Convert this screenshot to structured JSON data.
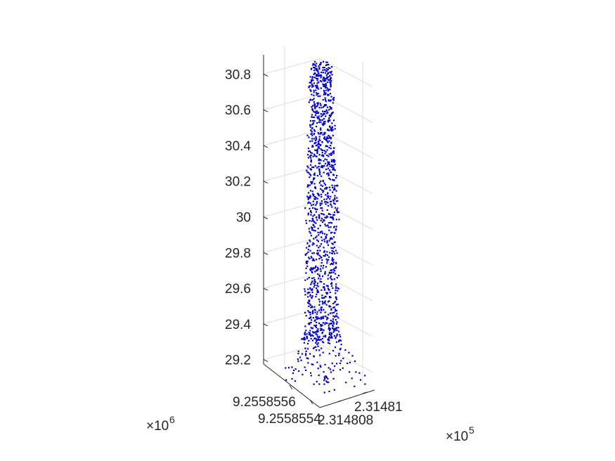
{
  "chart_data": {
    "type": "scatter",
    "view": "3d",
    "grid": true,
    "title": "",
    "xlabel": "",
    "ylabel": "",
    "zlabel": "",
    "marker": "point",
    "marker_color": "#0000cc",
    "x_axis": {
      "tick_labels": [
        "2.314808",
        "2.31481"
      ],
      "multiplier": "×10^5",
      "multiplier_base": "×10",
      "multiplier_exp": "5"
    },
    "y_axis": {
      "tick_labels": [
        "9.2558554",
        "9.2558556"
      ],
      "multiplier": "×10^6",
      "multiplier_base": "×10",
      "multiplier_exp": "6"
    },
    "z_axis": {
      "tick_labels": [
        "29.2",
        "29.4",
        "29.6",
        "29.8",
        "30",
        "30.2",
        "30.4",
        "30.6",
        "30.8"
      ],
      "values": [
        29.2,
        29.4,
        29.6,
        29.8,
        30,
        30.2,
        30.4,
        30.6,
        30.8
      ],
      "zlim": [
        29.1,
        30.9
      ]
    },
    "points_note_count": 1400,
    "shape_profile": [
      {
        "z": 29.1,
        "halfwidth": 0.55
      },
      {
        "z": 29.2,
        "halfwidth": 0.42
      },
      {
        "z": 29.3,
        "halfwidth": 0.25
      },
      {
        "z": 29.4,
        "halfwidth": 0.2
      },
      {
        "z": 30.0,
        "halfwidth": 0.2
      },
      {
        "z": 30.5,
        "halfwidth": 0.16
      },
      {
        "z": 30.6,
        "halfwidth": 0.14
      },
      {
        "z": 30.7,
        "halfwidth": 0.17
      },
      {
        "z": 30.85,
        "halfwidth": 0.12
      }
    ]
  }
}
